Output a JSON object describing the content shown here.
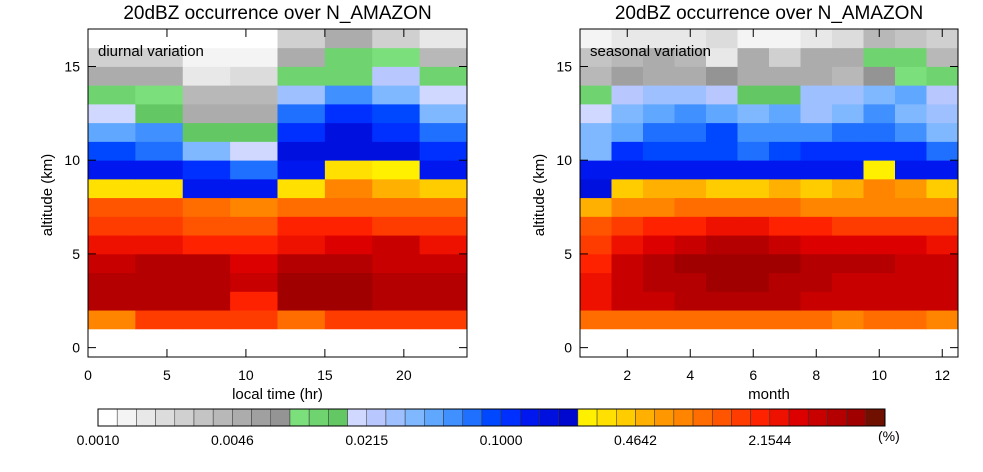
{
  "palette": [
    "#ffffff",
    "#f4f4f4",
    "#e8e8e8",
    "#dcdcdc",
    "#d0d0d0",
    "#c4c4c4",
    "#b8b8b8",
    "#acacac",
    "#a0a0a0",
    "#949494",
    "#7be07b",
    "#6fd46f",
    "#63c863",
    "#d0d8ff",
    "#b8c8ff",
    "#9ec0ff",
    "#80b8ff",
    "#60a8ff",
    "#4090ff",
    "#2070ff",
    "#0048ff",
    "#0030ff",
    "#0018ef",
    "#0010df",
    "#0008cf",
    "#fff000",
    "#ffe000",
    "#ffcc00",
    "#ffb000",
    "#ff9800",
    "#ff8400",
    "#ff6c00",
    "#ff5400",
    "#ff3c00",
    "#ff2200",
    "#ee1100",
    "#dc0000",
    "#c80000",
    "#b40000",
    "#a00000",
    "#701000"
  ],
  "colorbar": {
    "tick_labels": [
      "0.0010",
      "0.0046",
      "0.0215",
      "0.1000",
      "0.4642",
      "2.1544"
    ],
    "unit": "(%)"
  },
  "chart_data": [
    {
      "type": "heatmap",
      "title": "20dBZ occurrence over N_AMAZON",
      "annotation": "diurnal variation",
      "xlabel": "local time (hr)",
      "ylabel": "altitude (km)",
      "xlim": [
        0,
        24
      ],
      "ylim": [
        -0.5,
        17
      ],
      "xticks": [
        0,
        5,
        10,
        15,
        20
      ],
      "yticks": [
        0,
        5,
        10,
        15
      ],
      "x_edges": [
        0,
        3,
        6,
        9,
        12,
        15,
        18,
        21,
        24
      ],
      "y_edges": [
        1,
        2,
        3,
        4,
        5,
        6,
        7,
        8,
        9,
        10,
        11,
        12,
        13,
        14,
        15,
        16,
        17
      ],
      "color_index_rows_bottom_to_top": [
        [
          30,
          33,
          33,
          33,
          31,
          33,
          33,
          33
        ],
        [
          38,
          38,
          38,
          34,
          39,
          39,
          38,
          38
        ],
        [
          38,
          38,
          38,
          37,
          39,
          39,
          38,
          38
        ],
        [
          37,
          38,
          38,
          36,
          38,
          38,
          37,
          37
        ],
        [
          35,
          35,
          34,
          34,
          35,
          36,
          37,
          35
        ],
        [
          33,
          33,
          32,
          32,
          34,
          34,
          33,
          33
        ],
        [
          32,
          32,
          31,
          30,
          31,
          31,
          31,
          31
        ],
        [
          26,
          26,
          22,
          22,
          26,
          30,
          28,
          27
        ],
        [
          22,
          22,
          21,
          19,
          22,
          26,
          25,
          22
        ],
        [
          20,
          19,
          16,
          13,
          23,
          23,
          23,
          21
        ],
        [
          17,
          18,
          12,
          12,
          21,
          23,
          21,
          19
        ],
        [
          13,
          12,
          7,
          7,
          19,
          21,
          20,
          16
        ],
        [
          11,
          10,
          6,
          6,
          15,
          18,
          16,
          13
        ],
        [
          7,
          7,
          2,
          3,
          11,
          11,
          14,
          11
        ],
        [
          4,
          4,
          1,
          1,
          7,
          11,
          10,
          6
        ],
        [
          0,
          0,
          0,
          0,
          4,
          7,
          4,
          2
        ]
      ]
    },
    {
      "type": "heatmap",
      "title": "20dBZ occurrence over N_AMAZON",
      "annotation": "seasonal variation",
      "xlabel": "month",
      "ylabel": "altitude (km)",
      "xlim": [
        0.5,
        12.5
      ],
      "ylim": [
        -0.5,
        17
      ],
      "xticks": [
        2,
        4,
        6,
        8,
        10,
        12
      ],
      "yticks": [
        0,
        5,
        10,
        15
      ],
      "x_edges": [
        0.5,
        1.5,
        2.5,
        3.5,
        4.5,
        5.5,
        6.5,
        7.5,
        8.5,
        9.5,
        10.5,
        11.5,
        12.5
      ],
      "y_edges": [
        1,
        2,
        3,
        4,
        5,
        6,
        7,
        8,
        9,
        10,
        11,
        12,
        13,
        14,
        15,
        16,
        17
      ],
      "color_index_rows_bottom_to_top": [
        [
          31,
          31,
          31,
          31,
          31,
          31,
          31,
          31,
          30,
          31,
          31,
          30
        ],
        [
          35,
          37,
          37,
          38,
          38,
          38,
          38,
          37,
          37,
          37,
          37,
          37
        ],
        [
          35,
          37,
          38,
          38,
          39,
          39,
          38,
          38,
          37,
          37,
          37,
          37
        ],
        [
          34,
          37,
          38,
          39,
          39,
          39,
          39,
          38,
          38,
          38,
          37,
          37
        ],
        [
          33,
          35,
          36,
          37,
          38,
          38,
          37,
          36,
          36,
          36,
          36,
          35
        ],
        [
          32,
          33,
          34,
          34,
          35,
          35,
          34,
          34,
          33,
          33,
          33,
          33
        ],
        [
          28,
          30,
          30,
          31,
          31,
          31,
          31,
          30,
          30,
          30,
          30,
          30
        ],
        [
          23,
          27,
          28,
          28,
          27,
          27,
          28,
          27,
          28,
          30,
          29,
          27
        ],
        [
          22,
          22,
          22,
          22,
          22,
          22,
          22,
          22,
          22,
          25,
          22,
          22
        ],
        [
          16,
          21,
          20,
          20,
          20,
          19,
          20,
          21,
          21,
          21,
          21,
          19
        ],
        [
          16,
          17,
          19,
          19,
          20,
          18,
          18,
          18,
          19,
          19,
          18,
          16
        ],
        [
          13,
          16,
          17,
          18,
          17,
          16,
          17,
          15,
          16,
          18,
          16,
          15
        ],
        [
          11,
          14,
          15,
          15,
          14,
          12,
          12,
          15,
          15,
          16,
          17,
          14
        ],
        [
          6,
          8,
          7,
          7,
          9,
          7,
          7,
          7,
          6,
          9,
          10,
          11
        ],
        [
          5,
          6,
          7,
          6,
          2,
          7,
          4,
          7,
          7,
          11,
          11,
          6
        ],
        [
          1,
          2,
          2,
          2,
          3,
          1,
          1,
          2,
          3,
          6,
          5,
          4
        ]
      ]
    }
  ]
}
